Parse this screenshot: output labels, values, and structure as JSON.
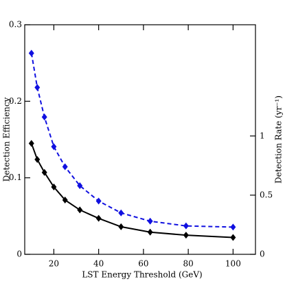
{
  "chart_data": {
    "type": "line",
    "x_label": "LST Energy Threshold (GeV)",
    "y_label": "Detection Efficiency",
    "y2_label": "Detection Rate (yr⁻¹)",
    "x": [
      10,
      12.6,
      15.8,
      20,
      25,
      31.6,
      40,
      50,
      63,
      79,
      100
    ],
    "series": [
      {
        "color": "#000000",
        "dash": false,
        "values": [
          0.145,
          0.124,
          0.107,
          0.088,
          0.071,
          0.058,
          0.047,
          0.036,
          0.029,
          0.025,
          0.022
        ]
      },
      {
        "color": "#1010e0",
        "dash": true,
        "axis": "y2",
        "values": [
          1.7,
          1.41,
          1.16,
          0.91,
          0.74,
          0.58,
          0.45,
          0.35,
          0.28,
          0.24,
          0.23
        ]
      }
    ],
    "xlim": [
      7,
      110
    ],
    "xticks": [
      20,
      40,
      60,
      80,
      100
    ],
    "ylim": [
      0,
      0.3
    ],
    "yticks": [
      0,
      0.1,
      0.2,
      0.3
    ],
    "y2lim": [
      0,
      1.94
    ],
    "y2ticks": [
      0,
      0.5,
      1
    ]
  }
}
